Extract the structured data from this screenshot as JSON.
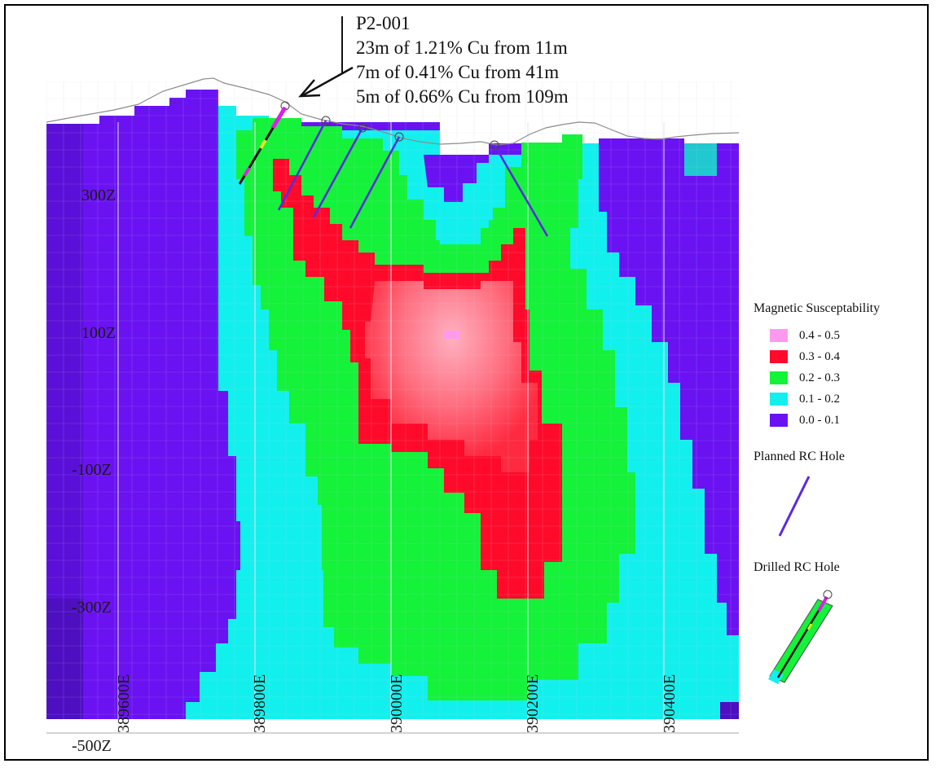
{
  "callout": {
    "hole_id": "P2-001",
    "intercepts": [
      "23m of 1.21% Cu from 11m",
      "7m of 0.41% Cu from 41m",
      "5m of 0.66% Cu from 109m"
    ]
  },
  "axes": {
    "z_labels": [
      "300Z",
      "100Z",
      "-100Z",
      "-300Z",
      "-500Z"
    ],
    "e_labels": [
      "389600E",
      "389800E",
      "390000E",
      "390200E",
      "390400E"
    ]
  },
  "legend": {
    "title": "Magnetic Susceptability",
    "classes": [
      {
        "label": "0.4 - 0.5",
        "color": "#ff99ee"
      },
      {
        "label": "0.3 - 0.4",
        "color": "#ff0a2a"
      },
      {
        "label": "0.2 - 0.3",
        "color": "#14f23a"
      },
      {
        "label": "0.1 - 0.2",
        "color": "#12f0ee"
      },
      {
        "label": "0.0 - 0.1",
        "color": "#6a12f2"
      }
    ],
    "planned_label": "Planned RC Hole",
    "drilled_label": "Drilled RC Hole"
  },
  "colors": {
    "planned_hole": "#5b28e0",
    "drilled_trace_magenta": "#e01ee8",
    "drilled_trace_black": "#111111",
    "topography": "#8c8c8c",
    "grid": "#c8c8d8"
  }
}
